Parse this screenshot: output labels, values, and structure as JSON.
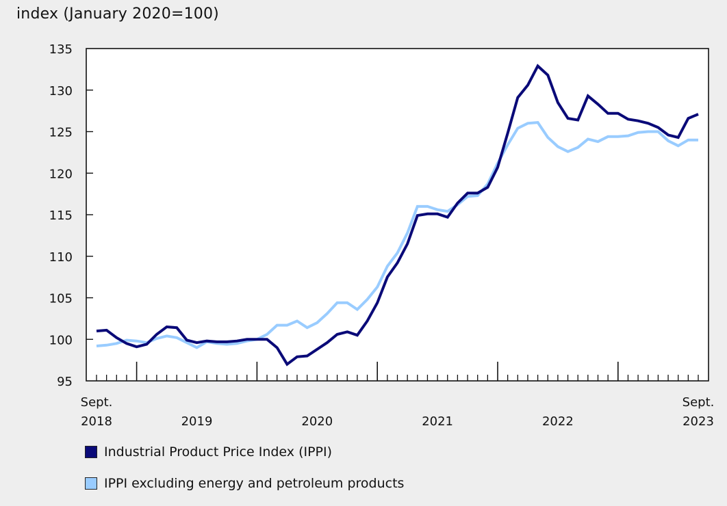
{
  "chart_data": {
    "type": "line",
    "title": "",
    "ylabel": "index (January 2020=100)",
    "xlabel": "",
    "ylim": [
      95,
      135
    ],
    "yticks": [
      95,
      100,
      105,
      110,
      115,
      120,
      125,
      130,
      135
    ],
    "grid": false,
    "legend_position": "bottom-left",
    "x": [
      "2018-09",
      "2018-10",
      "2018-11",
      "2018-12",
      "2019-01",
      "2019-02",
      "2019-03",
      "2019-04",
      "2019-05",
      "2019-06",
      "2019-07",
      "2019-08",
      "2019-09",
      "2019-10",
      "2019-11",
      "2019-12",
      "2020-01",
      "2020-02",
      "2020-03",
      "2020-04",
      "2020-05",
      "2020-06",
      "2020-07",
      "2020-08",
      "2020-09",
      "2020-10",
      "2020-11",
      "2020-12",
      "2021-01",
      "2021-02",
      "2021-03",
      "2021-04",
      "2021-05",
      "2021-06",
      "2021-07",
      "2021-08",
      "2021-09",
      "2021-10",
      "2021-11",
      "2021-12",
      "2022-01",
      "2022-02",
      "2022-03",
      "2022-04",
      "2022-05",
      "2022-06",
      "2022-07",
      "2022-08",
      "2022-09",
      "2022-10",
      "2022-11",
      "2022-12",
      "2023-01",
      "2023-02",
      "2023-03",
      "2023-04",
      "2023-05",
      "2023-06",
      "2023-07",
      "2023-08",
      "2023-09"
    ],
    "x_tick_labels": [
      {
        "month_index": 0,
        "lines": [
          "Sept.",
          "2018"
        ]
      },
      {
        "month_index": 10,
        "lines": [
          "",
          "2019"
        ]
      },
      {
        "month_index": 22,
        "lines": [
          "",
          "2020"
        ]
      },
      {
        "month_index": 34,
        "lines": [
          "",
          "2021"
        ]
      },
      {
        "month_index": 46,
        "lines": [
          "",
          "2022"
        ]
      },
      {
        "month_index": 60,
        "lines": [
          "Sept.",
          "2023"
        ]
      }
    ],
    "major_tick_month_indices": [
      4,
      16,
      28,
      40,
      52
    ],
    "series": [
      {
        "name": "Industrial Product Price Index (IPPI)",
        "color": "#0a0a78",
        "values": [
          101.0,
          101.1,
          100.2,
          99.5,
          99.1,
          99.4,
          100.6,
          101.5,
          101.4,
          99.9,
          99.6,
          99.8,
          99.7,
          99.7,
          99.8,
          100.0,
          100.0,
          100.0,
          99.0,
          97.0,
          97.9,
          98.0,
          98.8,
          99.6,
          100.6,
          100.9,
          100.5,
          102.2,
          104.4,
          107.5,
          109.2,
          111.5,
          114.9,
          115.1,
          115.1,
          114.7,
          116.4,
          117.6,
          117.6,
          118.3,
          120.7,
          124.8,
          129.1,
          130.6,
          132.9,
          131.8,
          128.5,
          126.6,
          126.4,
          129.3,
          128.3,
          127.2,
          127.2,
          126.5,
          126.3,
          126.0,
          125.5,
          124.6,
          124.3,
          126.6,
          127.1
        ]
      },
      {
        "name": "IPPI excluding energy and petroleum products",
        "color": "#99ccff",
        "values": [
          99.2,
          99.3,
          99.5,
          99.9,
          99.8,
          99.6,
          100.1,
          100.4,
          100.2,
          99.6,
          99.0,
          99.7,
          99.5,
          99.4,
          99.5,
          99.8,
          100.0,
          100.6,
          101.7,
          101.7,
          102.2,
          101.4,
          102.0,
          103.1,
          104.4,
          104.4,
          103.6,
          104.8,
          106.3,
          108.8,
          110.4,
          112.8,
          116.0,
          116.0,
          115.6,
          115.4,
          116.2,
          117.2,
          117.3,
          118.7,
          121.2,
          123.4,
          125.4,
          126.0,
          126.1,
          124.3,
          123.2,
          122.6,
          123.1,
          124.1,
          123.8,
          124.4,
          124.4,
          124.5,
          124.9,
          125.0,
          125.0,
          123.9,
          123.3,
          124.0,
          124.0
        ]
      }
    ]
  }
}
